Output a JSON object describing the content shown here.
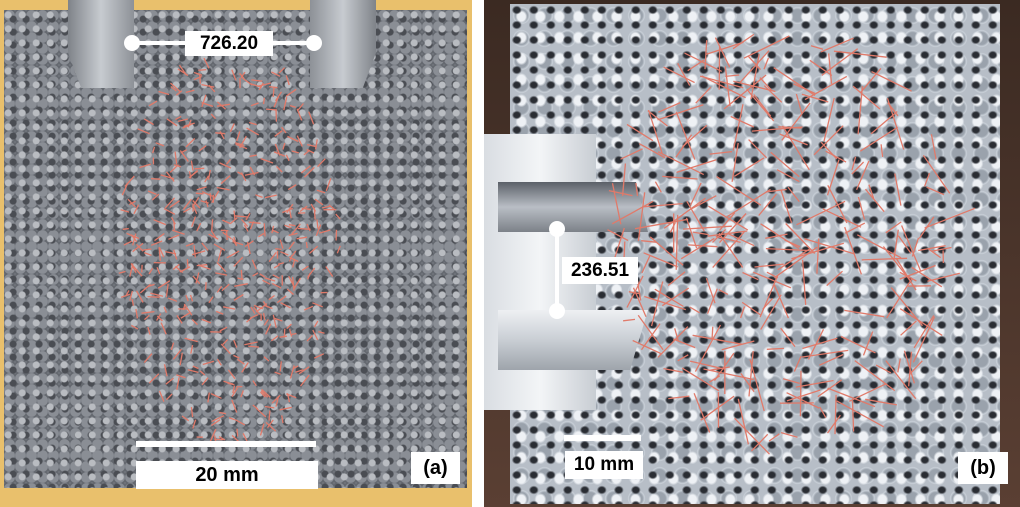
{
  "panel_a": {
    "measurement": "726.20",
    "scale_label": "20 mm",
    "panel_label": "(a)"
  },
  "panel_b": {
    "measurement": "236.51",
    "scale_label": "10 mm",
    "panel_label": "(b)"
  },
  "colors": {
    "overlay_lines": "#e07a6a",
    "frame_a": "#e9c06c",
    "background": "#ffffff"
  }
}
